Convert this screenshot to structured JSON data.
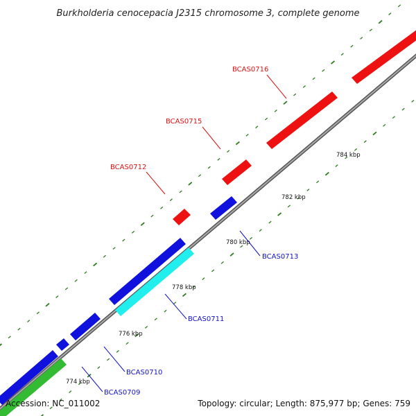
{
  "title": "Burkholderia cenocepacia J2315 chromosome 3, complete genome",
  "footer": {
    "accession": "Accession: NC_011002",
    "summary": "Topology: circular; Length: 875,977 bp; Genes: 759"
  },
  "colors": {
    "backbone": "#777777",
    "ticks": "#2e7d1f",
    "forward_strand": "#ee1111",
    "reverse_strand": "#1111dd",
    "highlight_cyan": "#22eeee",
    "highlight_green": "#33bb33",
    "label_red": "#dd1111",
    "label_blue": "#1111cc"
  },
  "scale_labels": [
    "774 kbp",
    "776 kbp",
    "778 kbp",
    "780 kbp",
    "782 kbp",
    "784 kbp"
  ],
  "genes": [
    {
      "name": "BCAS0709",
      "strand": "reverse",
      "color": "blue"
    },
    {
      "name": "BCAS0710",
      "strand": "reverse",
      "color": "blue"
    },
    {
      "name": "BCAS0711",
      "strand": "reverse",
      "color": "blue"
    },
    {
      "name": "BCAS0712",
      "strand": "forward",
      "color": "red"
    },
    {
      "name": "BCAS0713",
      "strand": "reverse",
      "color": "blue"
    },
    {
      "name": "BCAS0715",
      "strand": "forward",
      "color": "red"
    },
    {
      "name": "BCAS0716",
      "strand": "forward",
      "color": "red"
    }
  ]
}
